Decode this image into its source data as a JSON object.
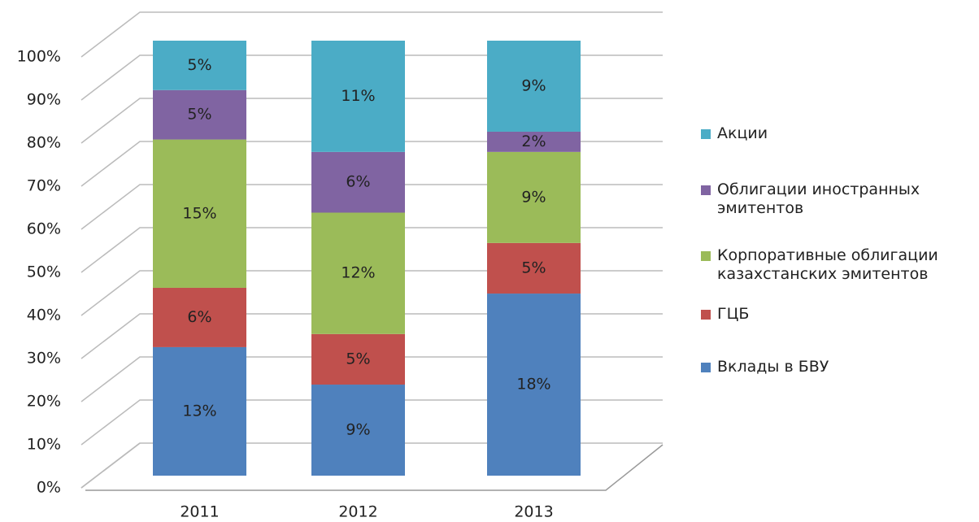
{
  "chart_data": {
    "type": "bar",
    "stacking": "percent",
    "categories": [
      "2011",
      "2012",
      "2013"
    ],
    "series": [
      {
        "name": "Вклады в БВУ",
        "color": "#4f81bd",
        "values": [
          13,
          9,
          18
        ],
        "value_labels": [
          "13%",
          "9%",
          "18%"
        ]
      },
      {
        "name": "ГЦБ",
        "color": "#c0504d",
        "values": [
          6,
          5,
          5
        ],
        "value_labels": [
          "6%",
          "5%",
          "5%"
        ]
      },
      {
        "name": "Корпоративные облигации казахстанских эмитентов",
        "color": "#9bbb59",
        "values": [
          15,
          12,
          9
        ],
        "value_labels": [
          "15%",
          "12%",
          "9%"
        ]
      },
      {
        "name": "Облигации иностранных эмитентов",
        "color": "#8064a2",
        "values": [
          5,
          6,
          2
        ],
        "value_labels": [
          "5%",
          "6%",
          "2%"
        ]
      },
      {
        "name": "Акции",
        "color": "#4bacc6",
        "values": [
          5,
          11,
          9
        ],
        "value_labels": [
          "5%",
          "11%",
          "9%"
        ]
      }
    ],
    "ylim": [
      0,
      100
    ],
    "yticks": [
      {
        "value": 0,
        "label": "0%"
      },
      {
        "value": 10,
        "label": "10%"
      },
      {
        "value": 20,
        "label": "20%"
      },
      {
        "value": 30,
        "label": "30%"
      },
      {
        "value": 40,
        "label": "40%"
      },
      {
        "value": 50,
        "label": "50%"
      },
      {
        "value": 60,
        "label": "60%"
      },
      {
        "value": 70,
        "label": "70%"
      },
      {
        "value": 80,
        "label": "80%"
      },
      {
        "value": 90,
        "label": "90%"
      },
      {
        "value": 100,
        "label": "100%"
      }
    ],
    "grid": true,
    "legend": "right"
  }
}
